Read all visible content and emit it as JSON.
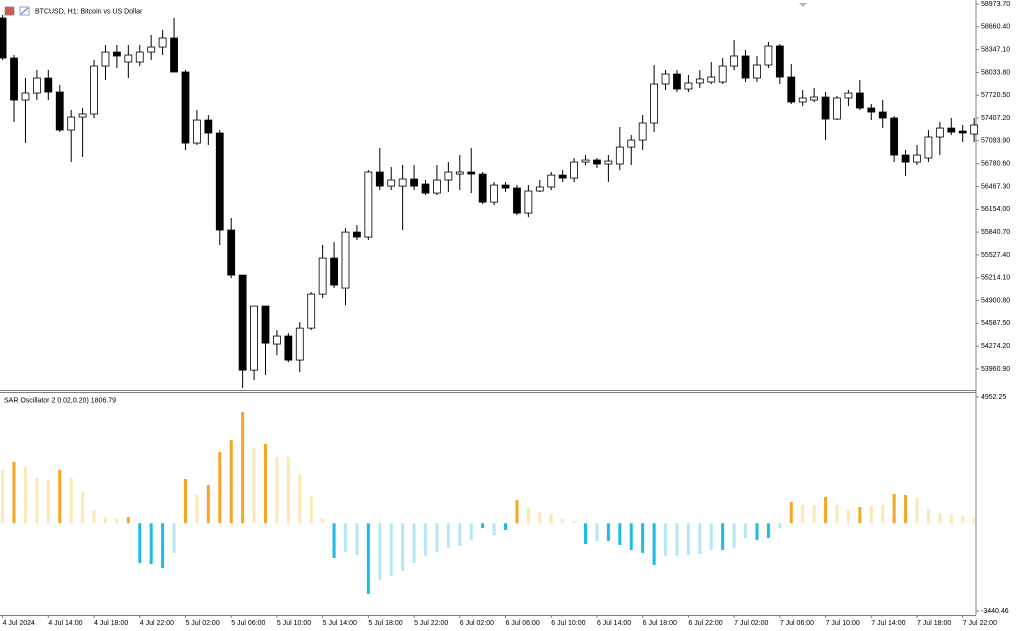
{
  "chart_data": [
    {
      "type": "candlestick",
      "title": "BTCUSD, H1: Bitcoin vs US Dollar",
      "up_color": "#ffffff",
      "down_color": "#000000",
      "outline_color": "#000000",
      "categories": [
        "4 Jul 2024",
        null,
        null,
        null,
        "4 Jul 14:00",
        null,
        null,
        null,
        "4 Jul 18:00",
        null,
        null,
        null,
        "4 Jul 22:00",
        null,
        null,
        null,
        "5 Jul 02:00",
        null,
        null,
        null,
        "5 Jul 06:00",
        null,
        null,
        null,
        "5 Jul 10:00",
        null,
        null,
        null,
        "5 Jul 14:00",
        null,
        null,
        null,
        "5 Jul 18:00",
        null,
        null,
        null,
        "5 Jul 22:00",
        null,
        null,
        null,
        "6 Jul 02:00",
        null,
        null,
        null,
        "6 Jul 06:00",
        null,
        null,
        null,
        "6 Jul 10:00",
        null,
        null,
        null,
        "6 Jul 14:00",
        null,
        null,
        null,
        "6 Jul 18:00",
        null,
        null,
        null,
        "6 Jul 22:00",
        null,
        null,
        null,
        "7 Jul 02:00",
        null,
        null,
        null,
        "7 Jul 06:00",
        null,
        null,
        null,
        "7 Jul 10:00",
        null,
        null,
        null,
        "7 Jul 14:00",
        null,
        null,
        null,
        "7 Jul 18:00",
        null,
        null,
        null,
        "7 Jul 22:00",
        null
      ],
      "open": [
        58782,
        58232,
        57655,
        57751,
        57957,
        57765,
        57243,
        57421,
        57463,
        58122,
        58314,
        58177,
        58177,
        58314,
        58383,
        58507,
        58040,
        57064,
        57380,
        57202,
        55869,
        55250,
        53945,
        54825,
        54303,
        54413,
        54083,
        54522,
        54989,
        55484,
        55072,
        55841,
        55773,
        56666,
        56473,
        56473,
        56570,
        56501,
        56377,
        56556,
        56638,
        56666,
        56638,
        56253,
        56487,
        56446,
        56102,
        56405,
        56460,
        56624,
        56583,
        56803,
        56831,
        56776,
        56776,
        57009,
        57105,
        57339,
        57875,
        58012,
        57806,
        57889,
        57902,
        57902,
        58122,
        58260,
        57957,
        58136,
        58397,
        57971,
        57628,
        57655,
        57696,
        57394,
        57683,
        57751,
        57545,
        57490,
        57408,
        56899,
        56803,
        56858,
        57147,
        57270,
        57229,
        57188
      ],
      "high": [
        58823,
        58273,
        57957,
        58067,
        58067,
        57861,
        57518,
        57545,
        58205,
        58411,
        58411,
        58411,
        58411,
        58548,
        58617,
        58782,
        58067,
        57518,
        57449,
        57243,
        56034,
        55250,
        54825,
        54825,
        54495,
        54454,
        54605,
        55017,
        55663,
        55704,
        55896,
        55937,
        56693,
        56996,
        56734,
        56762,
        56762,
        56556,
        56762,
        56803,
        56899,
        56996,
        56666,
        56528,
        56528,
        56487,
        56487,
        56556,
        56666,
        56693,
        56858,
        56899,
        56858,
        56899,
        57284,
        57174,
        57449,
        58136,
        58067,
        58067,
        57999,
        58067,
        58177,
        58232,
        58479,
        58342,
        58260,
        58452,
        58424,
        58150,
        57793,
        57820,
        57765,
        57710,
        57793,
        57930,
        57600,
        57655,
        57435,
        56968,
        57037,
        57243,
        57353,
        57408,
        57312,
        57408
      ],
      "low": [
        58205,
        57353,
        57064,
        57655,
        57655,
        57215,
        56803,
        56872,
        57408,
        57930,
        58095,
        57957,
        58122,
        58205,
        58273,
        58040,
        56968,
        57037,
        57037,
        55663,
        55209,
        53698,
        53808,
        53877,
        54151,
        54055,
        53918,
        54495,
        54934,
        55072,
        54838,
        55731,
        55731,
        56418,
        56418,
        55869,
        56418,
        56350,
        56350,
        56391,
        56418,
        56377,
        56226,
        56212,
        56391,
        56075,
        56047,
        56391,
        56418,
        56528,
        56528,
        56762,
        56721,
        56528,
        56693,
        56762,
        56968,
        57215,
        57793,
        57765,
        57765,
        57820,
        57875,
        57875,
        58067,
        57902,
        57902,
        58095,
        57875,
        57600,
        57573,
        57628,
        57105,
        57380,
        57573,
        57518,
        57380,
        57270,
        56803,
        56611,
        56762,
        56803,
        56899,
        57174,
        57078,
        57078
      ],
      "close": [
        58232,
        57655,
        57751,
        57957,
        57765,
        57243,
        57421,
        57463,
        58122,
        58314,
        58260,
        58273,
        58314,
        58383,
        58507,
        58040,
        57064,
        57380,
        57202,
        55869,
        55250,
        53945,
        54825,
        54316,
        54413,
        54083,
        54522,
        54989,
        55484,
        55113,
        55841,
        55773,
        56666,
        56473,
        56556,
        56570,
        56473,
        56377,
        56556,
        56666,
        56666,
        56638,
        56253,
        56487,
        56446,
        56102,
        56405,
        56460,
        56624,
        56583,
        56803,
        56831,
        56776,
        56817,
        57009,
        57105,
        57339,
        57875,
        58012,
        57806,
        57889,
        57944,
        57971,
        58122,
        58260,
        57957,
        58136,
        58397,
        57971,
        57628,
        57683,
        57696,
        57394,
        57683,
        57751,
        57545,
        57490,
        57408,
        56899,
        56803,
        56899,
        57147,
        57270,
        57215,
        57202,
        57312
      ],
      "ylim": [
        53672,
        59029
      ],
      "yticks": [
        {
          "value": 58973.7,
          "label": "58973.70"
        },
        {
          "value": 58660.4,
          "label": "58660.40"
        },
        {
          "value": 58347.1,
          "label": "58347.10"
        },
        {
          "value": 58033.8,
          "label": "58033.80"
        },
        {
          "value": 57720.5,
          "label": "57720.50"
        },
        {
          "value": 57407.2,
          "label": "57407.20"
        },
        {
          "value": 57093.9,
          "label": "57093.90"
        },
        {
          "value": 56780.6,
          "label": "56780.60"
        },
        {
          "value": 56467.3,
          "label": "56467.30"
        },
        {
          "value": 56154,
          "label": "56154.00"
        },
        {
          "value": 55840.7,
          "label": "55840.70"
        },
        {
          "value": 55527.4,
          "label": "55527.40"
        },
        {
          "value": 55214.1,
          "label": "55214.10"
        },
        {
          "value": 54900.8,
          "label": "54900.80"
        },
        {
          "value": 54587.5,
          "label": "54587.50"
        },
        {
          "value": 54274.2,
          "label": "54274.20"
        },
        {
          "value": 53960.9,
          "label": "53960.90"
        }
      ]
    },
    {
      "type": "bar",
      "title": "SAR Oscillator 2 0.02,0.20) 1806.79",
      "values": [
        2089,
        2403,
        2207,
        1776,
        1697,
        2089,
        1776,
        1227,
        521,
        208,
        169,
        247,
        -1556,
        -1595,
        -1752,
        -1164,
        1737,
        1109,
        1501,
        2795,
        3265,
        4363,
        2952,
        3109,
        2599,
        2599,
        1933,
        1070,
        169,
        -1360,
        -1125,
        -1243,
        -2771,
        -2223,
        -2066,
        -1870,
        -1556,
        -1282,
        -1125,
        -968,
        -890,
        -655,
        -184,
        -459,
        -263,
        913,
        600,
        443,
        365,
        169,
        90,
        -811,
        -694,
        -694,
        -851,
        -1047,
        -1164,
        -1635,
        -1282,
        -1282,
        -1243,
        -1203,
        -1047,
        -1047,
        -968,
        -576,
        -655,
        -576,
        -184,
        835,
        717,
        717,
        1031,
        717,
        521,
        639,
        678,
        717,
        1149,
        1109,
        992,
        561,
        404,
        325,
        286,
        208
      ],
      "colors": [
        "#fde7b3",
        "#f5a623",
        "#fde7b3",
        "#fde7b3",
        "#fde7b3",
        "#f5a623",
        "#fde7b3",
        "#fde7b3",
        "#fde7b3",
        "#fde7b3",
        "#fde7b3",
        "#f5a623",
        "#1bbde8",
        "#1bbde8",
        "#1bbde8",
        "#b6e7f6",
        "#f5a623",
        "#fde7b3",
        "#f5a623",
        "#f5a623",
        "#f5a623",
        "#f5a623",
        "#fde7b3",
        "#f5a623",
        "#fde7b3",
        "#fde7b3",
        "#fde7b3",
        "#fde7b3",
        "#fde7b3",
        "#1bbde8",
        "#b6e7f6",
        "#b6e7f6",
        "#1bbde8",
        "#b6e7f6",
        "#b6e7f6",
        "#b6e7f6",
        "#b6e7f6",
        "#b6e7f6",
        "#b6e7f6",
        "#b6e7f6",
        "#b6e7f6",
        "#b6e7f6",
        "#1bbde8",
        "#b6e7f6",
        "#1bbde8",
        "#f5a623",
        "#fde7b3",
        "#fde7b3",
        "#fde7b3",
        "#fde7b3",
        "#fde7b3",
        "#1bbde8",
        "#b6e7f6",
        "#1bbde8",
        "#1bbde8",
        "#1bbde8",
        "#1bbde8",
        "#1bbde8",
        "#b6e7f6",
        "#b6e7f6",
        "#b6e7f6",
        "#b6e7f6",
        "#b6e7f6",
        "#1bbde8",
        "#b6e7f6",
        "#b6e7f6",
        "#1bbde8",
        "#1bbde8",
        "#b6e7f6",
        "#f5a623",
        "#fde7b3",
        "#fde7b3",
        "#f5a623",
        "#fde7b3",
        "#fde7b3",
        "#f5a623",
        "#fde7b3",
        "#fde7b3",
        "#f5a623",
        "#f5a623",
        "#fde7b3",
        "#fde7b3",
        "#fde7b3",
        "#fde7b3",
        "#fde7b3",
        "#fde7b3"
      ],
      "ylim": [
        -3597,
        5109
      ],
      "yticks": [
        4952.25,
        -3440.46
      ]
    }
  ]
}
